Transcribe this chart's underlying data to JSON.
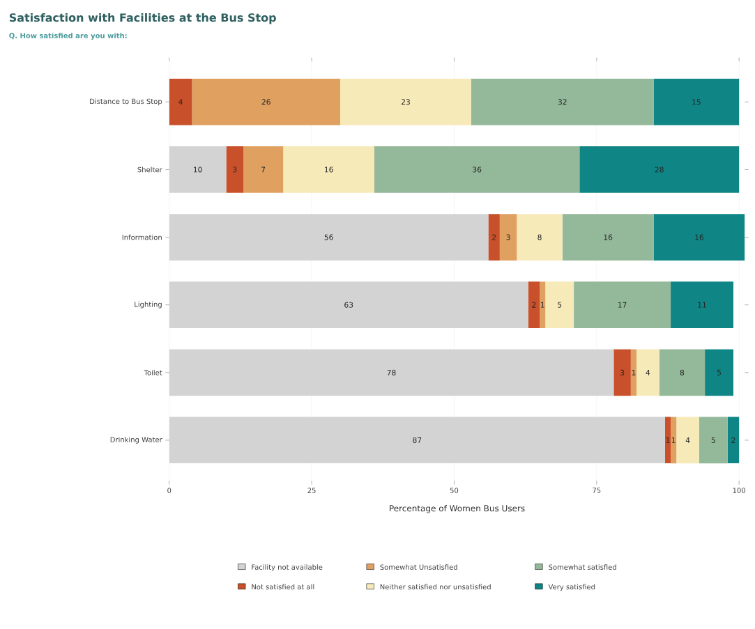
{
  "chart_data": {
    "type": "bar",
    "orientation": "horizontal",
    "stacked": true,
    "title": "Satisfaction with Facilities at the Bus Stop",
    "subtitle": "Q. How satisfied are you with:",
    "xlabel": "Percentage of Women Bus Users",
    "categories": [
      "Distance to Bus Stop",
      "Shelter",
      "Information",
      "Lighting",
      "Toilet",
      "Drinking Water"
    ],
    "series": [
      {
        "name": "Facility not available",
        "color": "#d3d3d3",
        "values": [
          null,
          10,
          56,
          63,
          78,
          87
        ]
      },
      {
        "name": "Not satisfied at all",
        "color": "#c8502a",
        "values": [
          4,
          3,
          2,
          2,
          3,
          1
        ]
      },
      {
        "name": "Somewhat Unsatisfied",
        "color": "#dfa060",
        "values": [
          26,
          7,
          3,
          1,
          1,
          1
        ]
      },
      {
        "name": "Neither satisfied nor unsatisfied",
        "color": "#f7eab9",
        "values": [
          23,
          16,
          8,
          5,
          4,
          4
        ]
      },
      {
        "name": "Somewhat satisfied",
        "color": "#94b89a",
        "values": [
          32,
          36,
          16,
          17,
          8,
          5
        ]
      },
      {
        "name": "Very satisfied",
        "color": "#0f8585",
        "values": [
          15,
          28,
          16,
          11,
          5,
          2
        ]
      }
    ],
    "xlim": [
      0,
      101
    ],
    "xticks": [
      0,
      25,
      50,
      75,
      100
    ],
    "grid": "x",
    "legend": "bottom",
    "data_labels": true
  }
}
